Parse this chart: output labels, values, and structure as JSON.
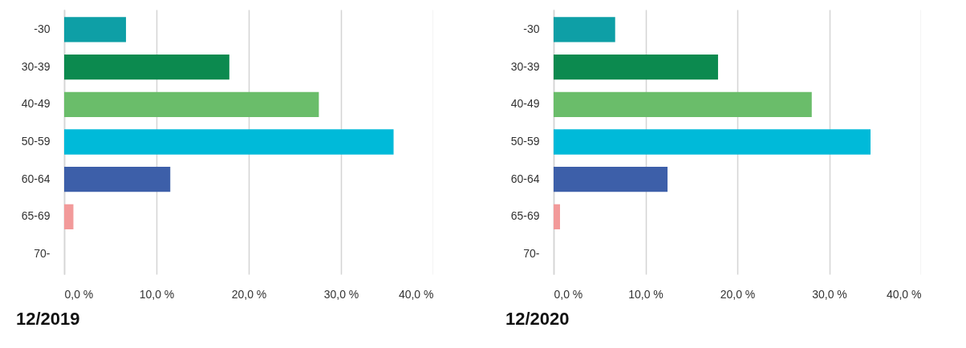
{
  "chart_data": [
    {
      "type": "bar",
      "orientation": "horizontal",
      "title": "12/2019",
      "categories": [
        "-30",
        "30-39",
        "40-49",
        "50-59",
        "60-64",
        "65-69",
        "70-"
      ],
      "values": [
        6.7,
        17.9,
        27.6,
        35.7,
        11.5,
        1.0,
        0
      ],
      "colors": [
        "#0e9fa6",
        "#0c8a4f",
        "#6abd6a",
        "#00bad9",
        "#3d5fa9",
        "#f29a9a",
        "#f29a9a"
      ],
      "xlim": [
        0,
        40
      ],
      "xticks": [
        {
          "value": 0,
          "label": "0,0 %"
        },
        {
          "value": 10,
          "label": "10,0 %"
        },
        {
          "value": 20,
          "label": "20,0 %"
        },
        {
          "value": 30,
          "label": "30,0 %"
        },
        {
          "value": 40,
          "label": "40,0 %"
        }
      ],
      "grid": "x"
    },
    {
      "type": "bar",
      "orientation": "horizontal",
      "title": "12/2020",
      "categories": [
        "-30",
        "30-39",
        "40-49",
        "50-59",
        "60-64",
        "65-69",
        "70-"
      ],
      "values": [
        6.7,
        17.9,
        28.1,
        34.5,
        12.4,
        0.7,
        0
      ],
      "colors": [
        "#0e9fa6",
        "#0c8a4f",
        "#6abd6a",
        "#00bad9",
        "#3d5fa9",
        "#f29a9a",
        "#f29a9a"
      ],
      "xlim": [
        0,
        40
      ],
      "xticks": [
        {
          "value": 0,
          "label": "0,0 %"
        },
        {
          "value": 10,
          "label": "10,0 %"
        },
        {
          "value": 20,
          "label": "20,0 %"
        },
        {
          "value": 30,
          "label": "30,0 %"
        },
        {
          "value": 40,
          "label": "40,0 %"
        }
      ],
      "grid": "x"
    }
  ]
}
